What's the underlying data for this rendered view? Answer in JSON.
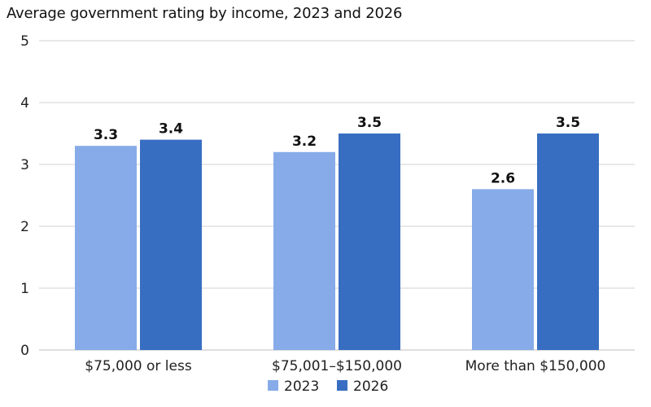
{
  "chart_data": {
    "type": "bar",
    "title": "Average government rating by income, 2023 and 2026",
    "categories": [
      "$75,000 or less",
      "$75,001–$150,000",
      "More than $150,000"
    ],
    "series": [
      {
        "name": "2023",
        "values": [
          3.3,
          3.2,
          2.6
        ],
        "color": "#86ABE8",
        "labels": [
          "3.3",
          "3.2",
          "2.6"
        ]
      },
      {
        "name": "2026",
        "values": [
          3.4,
          3.5,
          3.5
        ],
        "color": "#386EC2",
        "labels": [
          "3.4",
          "3.5",
          "3.5"
        ]
      }
    ],
    "xlabel": "",
    "ylabel": "",
    "ylim": [
      0,
      5
    ],
    "yticks": [
      0,
      1,
      2,
      3,
      4,
      5
    ],
    "ytick_labels": [
      "0",
      "1",
      "2",
      "3",
      "4",
      "5"
    ],
    "grid": true,
    "grid_color": "#D0D0D0",
    "legend_position": "bottom"
  }
}
